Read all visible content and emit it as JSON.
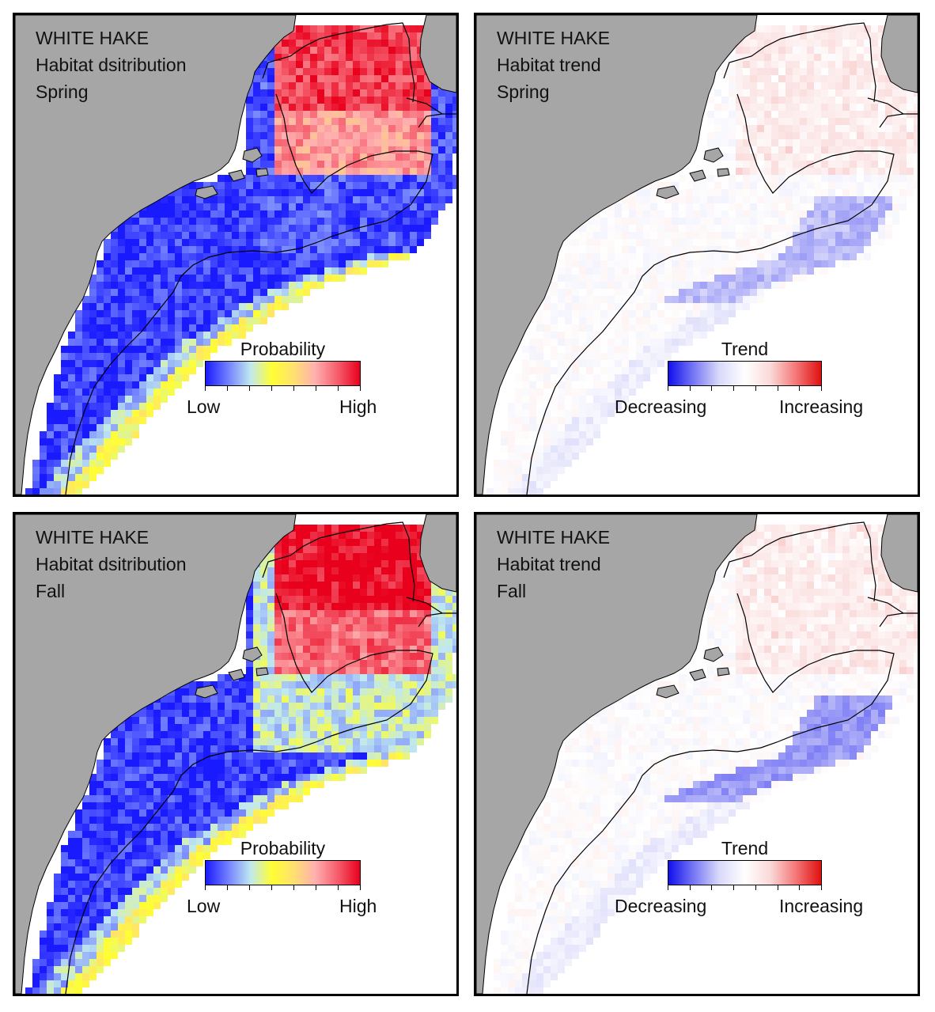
{
  "panels": [
    {
      "species": "WHITE HAKE",
      "map_type": "Habitat dsitribution",
      "season": "Spring",
      "legend": {
        "title": "Probability",
        "low": "Low",
        "high": "High"
      },
      "scale": "probability"
    },
    {
      "species": "WHITE HAKE",
      "map_type": "Habitat trend",
      "season": "Spring",
      "legend": {
        "title": "Trend",
        "low": "Decreasing",
        "high": "Increasing"
      },
      "scale": "trend"
    },
    {
      "species": "WHITE HAKE",
      "map_type": "Habitat dsitribution",
      "season": "Fall",
      "legend": {
        "title": "Probability",
        "low": "Low",
        "high": "High"
      },
      "scale": "probability"
    },
    {
      "species": "WHITE HAKE",
      "map_type": "Habitat trend",
      "season": "Fall",
      "legend": {
        "title": "Trend",
        "low": "Decreasing",
        "high": "Increasing"
      },
      "scale": "trend"
    }
  ],
  "colors": {
    "land": "#a6a6a6",
    "ocean": "#ffffff",
    "probability_ramp": [
      "#1a1aff",
      "#6f7cff",
      "#bfe8f0",
      "#ffff33",
      "#ffe070",
      "#ffb0b0",
      "#f55a6a",
      "#e8001c"
    ],
    "trend_ramp": [
      "#1010ee",
      "#7a7af5",
      "#d8d8fa",
      "#ffffff",
      "#fad8d8",
      "#f57a7a",
      "#e01010"
    ]
  }
}
